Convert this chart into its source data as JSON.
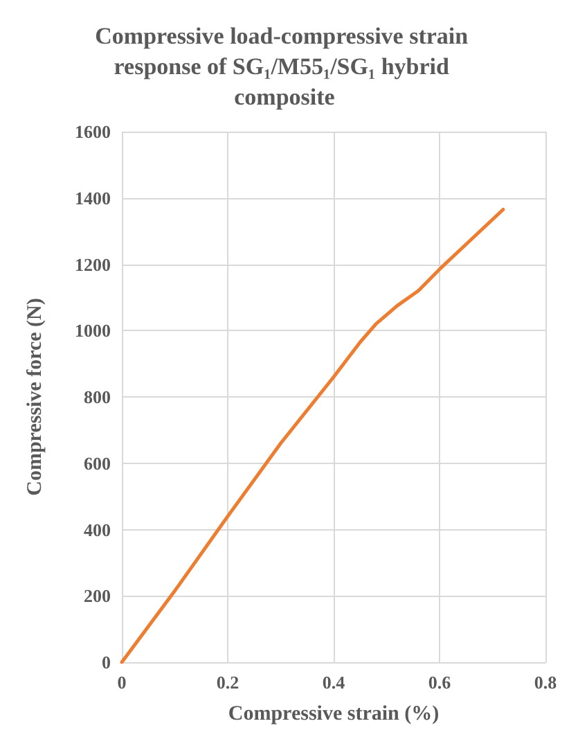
{
  "chart_data": {
    "type": "line",
    "title": "Compressive load-compressive strain response of SG₁/M55₁/SG₁ hybrid composite",
    "xlabel": "Compressive strain (%)",
    "ylabel": "Compressive force (N)",
    "series": [
      {
        "color": "#ed7d31",
        "x": [
          0,
          0.1,
          0.2,
          0.3,
          0.4,
          0.45,
          0.48,
          0.52,
          0.56,
          0.6,
          0.65,
          0.72
        ],
        "values": [
          0,
          215,
          440,
          660,
          860,
          965,
          1020,
          1075,
          1120,
          1185,
          1260,
          1365
        ]
      }
    ],
    "xlim": [
      0,
      0.8
    ],
    "xticks": [
      0,
      0.2,
      0.4,
      0.6,
      0.8
    ],
    "ylim": [
      0,
      1600
    ],
    "yticks": [
      0,
      200,
      400,
      600,
      800,
      1000,
      1200,
      1400,
      1600
    ],
    "grid": true,
    "marker": "none",
    "line_style": "solid"
  }
}
